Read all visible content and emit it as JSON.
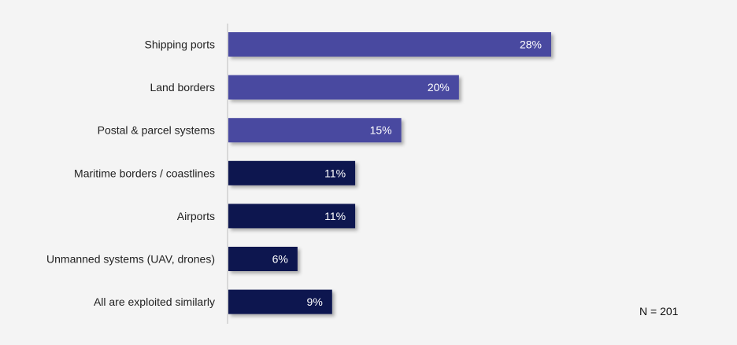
{
  "chart_data": {
    "type": "bar",
    "orientation": "horizontal",
    "categories": [
      "Shipping ports",
      "Land borders",
      "Postal & parcel systems",
      "Maritime borders / coastlines",
      "Airports",
      "Unmanned systems (UAV, drones)",
      "All are exploited similarly"
    ],
    "values": [
      28,
      20,
      15,
      11,
      11,
      6,
      9
    ],
    "data_labels": [
      "28%",
      "20%",
      "15%",
      "11%",
      "11%",
      "6%",
      "9%"
    ],
    "bar_colors": [
      "#4848a0",
      "#4848a0",
      "#4848a0",
      "#0c1650",
      "#0c1650",
      "#0c1650",
      "#0c1650"
    ],
    "xlim": [
      0,
      28
    ],
    "grid": false,
    "title": "",
    "xlabel": "",
    "ylabel": ""
  },
  "annotation": "N = 201"
}
